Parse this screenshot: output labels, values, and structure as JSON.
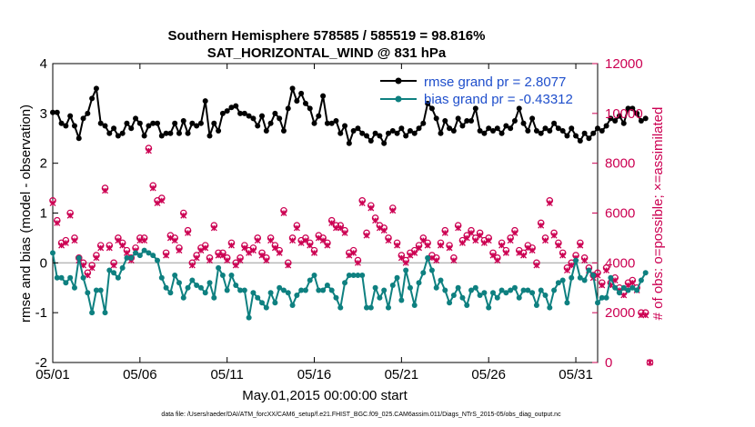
{
  "chart_data": {
    "type": "line",
    "title": "Southern Hemisphere 578585 / 585519 = 98.816%",
    "subtitle": "SAT_HORIZONTAL_WIND @ 831 hPa",
    "xlabel": "May.01,2015 00:00:00 start",
    "ylabel": "rmse and bias (model - observation)",
    "ylabel_right": "# of obs: o=possible; ×=assimilated",
    "footer": "data file: /Users/raeder/DAI/ATM_forcXX/CAM6_setup/f.e21.FHIST_BGC.f09_025.CAM6assim.011/Diags_NTrS_2015-05/obs_diag_output.nc",
    "xlim": [
      0,
      31.25
    ],
    "ylim": [
      -2,
      4
    ],
    "ylim_right": [
      0,
      12000
    ],
    "x_ticks": [
      0,
      5,
      10,
      15,
      20,
      25,
      30
    ],
    "x_tick_labels": [
      "05/01",
      "05/06",
      "05/11",
      "05/16",
      "05/21",
      "05/26",
      "05/31"
    ],
    "y_ticks": [
      -2,
      -1,
      0,
      1,
      2,
      3,
      4
    ],
    "y_tick_labels": [
      "-2",
      "-1",
      "0",
      "1",
      "2",
      "3",
      "4"
    ],
    "y_ticks_right": [
      0,
      2000,
      4000,
      6000,
      8000,
      10000,
      12000
    ],
    "y_tick_labels_right": [
      "0",
      "2000",
      "4000",
      "6000",
      "8000",
      "10000",
      "12000"
    ],
    "step_days": 0.25,
    "series": [
      {
        "name": "rmse grand pr = 2.8077",
        "axis": "left",
        "color": "#000000",
        "marker": "filled-circle",
        "values": [
          3.02,
          3.02,
          2.8,
          2.75,
          2.95,
          2.75,
          2.5,
          2.9,
          3.0,
          3.3,
          3.5,
          2.8,
          2.75,
          2.6,
          2.7,
          2.55,
          2.6,
          2.8,
          2.7,
          2.9,
          2.8,
          2.55,
          2.75,
          2.8,
          2.8,
          2.55,
          2.6,
          2.6,
          2.8,
          2.6,
          2.85,
          2.6,
          2.8,
          2.75,
          2.8,
          3.25,
          2.55,
          2.8,
          2.65,
          3.0,
          3.05,
          3.12,
          3.15,
          3.0,
          3.0,
          2.95,
          2.9,
          2.75,
          2.95,
          2.65,
          2.8,
          3.0,
          2.9,
          2.65,
          3.1,
          3.5,
          3.25,
          3.4,
          3.2,
          3.1,
          2.8,
          2.95,
          3.35,
          2.8,
          2.8,
          2.85,
          2.6,
          2.75,
          2.4,
          2.65,
          2.7,
          2.6,
          2.55,
          2.45,
          2.6,
          2.55,
          2.4,
          2.6,
          2.65,
          2.6,
          2.7,
          2.55,
          2.65,
          2.6,
          2.7,
          2.8,
          3.2,
          3.1,
          2.9,
          2.6,
          2.85,
          2.7,
          2.65,
          2.9,
          2.75,
          2.85,
          2.85,
          3.1,
          2.65,
          2.6,
          2.7,
          2.65,
          2.7,
          2.6,
          2.75,
          2.7,
          2.85,
          3.1,
          2.8,
          2.65,
          2.9,
          2.65,
          2.6,
          2.7,
          2.65,
          2.8,
          2.7,
          2.65,
          2.55,
          2.7,
          2.55,
          2.45,
          2.6,
          2.5,
          2.6,
          2.7,
          2.65,
          2.75,
          2.9,
          2.85,
          2.95,
          2.8,
          3.1,
          3.1,
          3.0,
          2.85,
          2.9
        ]
      },
      {
        "name": "bias grand pr = -0.43312",
        "axis": "left",
        "color": "#0e8080",
        "marker": "filled-circle",
        "values": [
          0.2,
          -0.3,
          -0.3,
          -0.4,
          -0.3,
          -0.5,
          0.1,
          -0.3,
          -0.6,
          -1.0,
          -0.55,
          -0.55,
          -1.0,
          -0.15,
          -0.2,
          -0.3,
          -0.1,
          0.1,
          0.1,
          0.2,
          0.15,
          0.25,
          0.2,
          0.15,
          0.05,
          -0.3,
          -0.5,
          -0.6,
          -0.25,
          -0.4,
          -0.7,
          -0.5,
          -0.35,
          -0.45,
          -0.5,
          -0.6,
          -0.4,
          -0.7,
          -0.1,
          -0.25,
          -0.55,
          -0.25,
          -0.45,
          -0.55,
          -0.55,
          -1.1,
          -0.6,
          -0.7,
          -0.8,
          -0.9,
          -0.6,
          -0.8,
          -0.5,
          -0.55,
          -0.6,
          -0.85,
          -0.65,
          -0.55,
          -0.55,
          -0.35,
          -0.25,
          -0.55,
          -0.55,
          -0.45,
          -0.55,
          -0.7,
          -0.9,
          -0.4,
          -0.25,
          -0.25,
          -0.25,
          -0.25,
          -0.9,
          -0.9,
          -0.5,
          -0.7,
          -0.55,
          -0.9,
          -0.45,
          -0.3,
          -0.75,
          -0.15,
          -0.5,
          -0.85,
          -0.4,
          -0.2,
          0.1,
          -0.15,
          -0.5,
          -0.35,
          -0.55,
          -0.8,
          -0.65,
          -0.5,
          -0.7,
          -0.85,
          -0.55,
          -0.5,
          -0.65,
          -0.6,
          -0.9,
          -0.6,
          -0.7,
          -0.55,
          -0.6,
          -0.55,
          -0.5,
          -0.7,
          -0.55,
          -0.55,
          -0.6,
          -0.85,
          -0.55,
          -0.65,
          -0.9,
          -0.55,
          -0.4,
          -0.35,
          -0.8,
          -0.3,
          0.05,
          -0.3,
          -0.35,
          -0.15,
          -0.25,
          -0.8,
          -0.7,
          -0.7,
          -0.3,
          -0.5,
          -0.6,
          -0.5,
          -0.55,
          -0.5,
          -0.55,
          -0.35,
          -0.2
        ]
      },
      {
        "name": "obs possible",
        "axis": "right",
        "color": "#cc0052",
        "marker": "open-circle",
        "values": [
          6500,
          5700,
          4800,
          4900,
          6000,
          5000,
          4200,
          4000,
          3600,
          3900,
          4300,
          4700,
          7000,
          4700,
          4000,
          5000,
          4800,
          4500,
          4200,
          4600,
          5000,
          5000,
          8600,
          7100,
          6500,
          6600,
          4400,
          5100,
          5000,
          4600,
          6000,
          5300,
          4000,
          4300,
          4600,
          4700,
          4200,
          5500,
          4400,
          4400,
          4200,
          4800,
          4000,
          4200,
          4700,
          4500,
          4600,
          5000,
          4400,
          4200,
          5000,
          4700,
          4500,
          6100,
          4000,
          5000,
          5500,
          4900,
          5000,
          4800,
          4500,
          5100,
          5000,
          4800,
          5700,
          5500,
          5500,
          5300,
          4400,
          4500,
          4100,
          6500,
          5200,
          6300,
          5800,
          5500,
          5400,
          5000,
          6200,
          4800,
          4300,
          4100,
          4400,
          4500,
          4700,
          5000,
          4800,
          4300,
          4200,
          4800,
          5300,
          4700,
          4200,
          5500,
          4900,
          5100,
          5300,
          5000,
          5200,
          4900,
          5000,
          4400,
          4200,
          4800,
          4500,
          5000,
          5300,
          4500,
          4400,
          4700,
          4600,
          4000,
          5600,
          5000,
          6500,
          5200,
          4800,
          4400,
          3800,
          4000,
          4300,
          4800,
          4200,
          3800,
          3500,
          3600,
          3200,
          3800,
          3200,
          3400,
          3000,
          2800,
          3200,
          3300,
          3000,
          2000,
          2000,
          0
        ]
      },
      {
        "name": "obs assimilated",
        "axis": "right",
        "color": "#cc0052",
        "marker": "cross",
        "values": [
          6400,
          5600,
          4700,
          4800,
          5900,
          4900,
          4100,
          3900,
          3500,
          3800,
          4200,
          4600,
          6900,
          4600,
          3900,
          4900,
          4700,
          4400,
          4100,
          4500,
          4900,
          4900,
          8500,
          7000,
          6400,
          6500,
          4300,
          5000,
          4900,
          4500,
          5900,
          5200,
          3900,
          4200,
          4500,
          4600,
          4100,
          5400,
          4300,
          4300,
          4100,
          4700,
          3900,
          4100,
          4600,
          4400,
          4500,
          4900,
          4300,
          4100,
          4900,
          4600,
          4400,
          6000,
          3900,
          4900,
          5400,
          4800,
          4900,
          4700,
          4400,
          5000,
          4900,
          4700,
          5600,
          5400,
          5400,
          5200,
          4300,
          4400,
          4000,
          6400,
          5100,
          6200,
          5700,
          5400,
          5300,
          4900,
          6100,
          4700,
          4200,
          4000,
          4300,
          4400,
          4600,
          4900,
          4700,
          4200,
          4100,
          4700,
          5200,
          4600,
          4100,
          5400,
          4800,
          5000,
          5200,
          4900,
          5100,
          4800,
          4900,
          4300,
          4100,
          4700,
          4400,
          4900,
          5200,
          4400,
          4300,
          4600,
          4500,
          3900,
          5500,
          4900,
          6400,
          5100,
          4700,
          4300,
          3700,
          3900,
          4200,
          4700,
          4100,
          3700,
          3400,
          3500,
          3100,
          3700,
          3100,
          3300,
          2900,
          2700,
          3100,
          3200,
          2900,
          1900,
          1900,
          0
        ]
      }
    ],
    "legend": [
      "rmse grand pr = 2.8077",
      "bias grand pr = -0.43312"
    ],
    "legend_position": "top-right",
    "zero_line": true,
    "grid": false
  }
}
